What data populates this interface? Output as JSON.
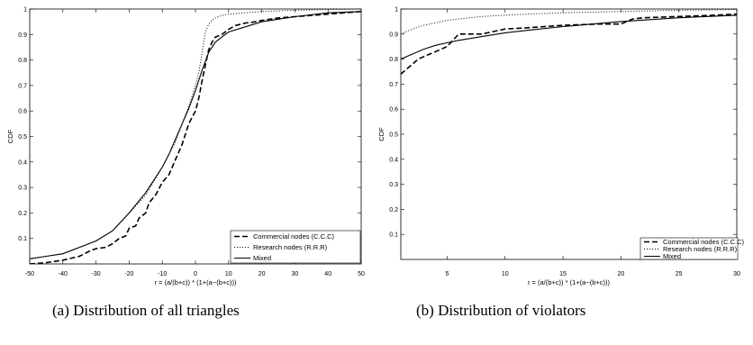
{
  "captions": {
    "a": "(a) Distribution of all triangles",
    "b": "(b) Distribution of violators"
  },
  "colors": {
    "axes": "#000000",
    "background": "#ffffff"
  },
  "chart_data": [
    {
      "type": "line",
      "title": "",
      "xlabel": "r = (a/(b+c)) * (1+(a−(b+c)))",
      "ylabel": "CDF",
      "xlim": [
        -50,
        50
      ],
      "ylim": [
        0,
        1
      ],
      "xticks": [
        "-50",
        "-40",
        "-30",
        "-20",
        "-10",
        "0",
        "10",
        "20",
        "30",
        "40",
        "50"
      ],
      "yticks": [
        "0.1",
        "0.2",
        "0.3",
        "0.4",
        "0.5",
        "0.6",
        "0.7",
        "0.8",
        "0.9",
        "1"
      ],
      "grid": false,
      "legend_position": "bottom-right",
      "series": [
        {
          "name": "Commercial nodes (C.C.C)",
          "style": "dashed",
          "x": [
            -50,
            -45,
            -40,
            -35,
            -32,
            -30,
            -27,
            -25,
            -23,
            -21,
            -20,
            -18,
            -17,
            -15,
            -14,
            -12,
            -10,
            -8,
            -6,
            -4,
            -2,
            0,
            1,
            2,
            3,
            4,
            5,
            6,
            8,
            10,
            12,
            15,
            18,
            20,
            25,
            30,
            35,
            40,
            45,
            50
          ],
          "y": [
            0.0,
            0.005,
            0.015,
            0.03,
            0.05,
            0.06,
            0.065,
            0.08,
            0.1,
            0.11,
            0.14,
            0.15,
            0.18,
            0.2,
            0.24,
            0.27,
            0.32,
            0.35,
            0.41,
            0.47,
            0.55,
            0.6,
            0.65,
            0.72,
            0.78,
            0.84,
            0.87,
            0.89,
            0.9,
            0.92,
            0.935,
            0.945,
            0.95,
            0.955,
            0.965,
            0.97,
            0.975,
            0.98,
            0.985,
            0.99
          ]
        },
        {
          "name": "Research nodes (R.R.R)",
          "style": "dotted",
          "x": [
            -50,
            -45,
            -40,
            -35,
            -30,
            -25,
            -20,
            -15,
            -10,
            -8,
            -6,
            -4,
            -2,
            0,
            1,
            2,
            3,
            4,
            5,
            6,
            8,
            10,
            15,
            20,
            30,
            40,
            50
          ],
          "y": [
            0.02,
            0.03,
            0.04,
            0.065,
            0.09,
            0.13,
            0.2,
            0.27,
            0.38,
            0.43,
            0.48,
            0.55,
            0.62,
            0.7,
            0.75,
            0.83,
            0.91,
            0.94,
            0.955,
            0.965,
            0.975,
            0.98,
            0.985,
            0.99,
            0.995,
            0.998,
            1.0
          ]
        },
        {
          "name": "Mixed",
          "style": "solid",
          "x": [
            -50,
            -45,
            -40,
            -35,
            -30,
            -25,
            -20,
            -15,
            -10,
            -8,
            -6,
            -4,
            -2,
            0,
            2,
            4,
            6,
            8,
            10,
            15,
            20,
            25,
            30,
            40,
            50
          ],
          "y": [
            0.02,
            0.03,
            0.04,
            0.065,
            0.09,
            0.13,
            0.2,
            0.28,
            0.38,
            0.43,
            0.49,
            0.55,
            0.61,
            0.68,
            0.76,
            0.83,
            0.87,
            0.89,
            0.91,
            0.93,
            0.95,
            0.96,
            0.97,
            0.985,
            0.99
          ]
        }
      ]
    },
    {
      "type": "line",
      "title": "",
      "xlabel": "r = (a/(b+c)) * (1+(a−(b+c)))",
      "ylabel": "CDF",
      "xlim": [
        1,
        30
      ],
      "ylim": [
        0,
        1
      ],
      "xticks": [
        "5",
        "10",
        "15",
        "20",
        "25",
        "30"
      ],
      "yticks": [
        "0.1",
        "0.2",
        "0.3",
        "0.4",
        "0.5",
        "0.6",
        "0.7",
        "0.8",
        "0.9",
        "1"
      ],
      "grid": false,
      "legend_position": "bottom-right",
      "series": [
        {
          "name": "Commercial nodes (C.C.C)",
          "style": "dashed",
          "x": [
            1,
            1.5,
            2,
            2.5,
            3,
            3.5,
            4,
            5,
            6,
            7,
            8,
            9,
            10,
            12,
            15,
            18,
            20,
            21,
            22,
            25,
            28,
            30
          ],
          "y": [
            0.74,
            0.76,
            0.78,
            0.8,
            0.81,
            0.82,
            0.83,
            0.85,
            0.9,
            0.9,
            0.9,
            0.91,
            0.92,
            0.925,
            0.935,
            0.94,
            0.94,
            0.96,
            0.965,
            0.97,
            0.975,
            0.98
          ]
        },
        {
          "name": "Research nodes (R.R.R)",
          "style": "dotted",
          "x": [
            1,
            2,
            3,
            4,
            5,
            6,
            8,
            10,
            12,
            15,
            20,
            25,
            30
          ],
          "y": [
            0.9,
            0.92,
            0.935,
            0.945,
            0.955,
            0.96,
            0.97,
            0.975,
            0.98,
            0.985,
            0.99,
            0.995,
            0.998
          ]
        },
        {
          "name": "Mixed",
          "style": "solid",
          "x": [
            1,
            2,
            3,
            4,
            5,
            6,
            8,
            10,
            12,
            15,
            20,
            25,
            30
          ],
          "y": [
            0.8,
            0.82,
            0.84,
            0.855,
            0.865,
            0.875,
            0.89,
            0.905,
            0.915,
            0.93,
            0.95,
            0.965,
            0.975
          ]
        }
      ]
    }
  ]
}
